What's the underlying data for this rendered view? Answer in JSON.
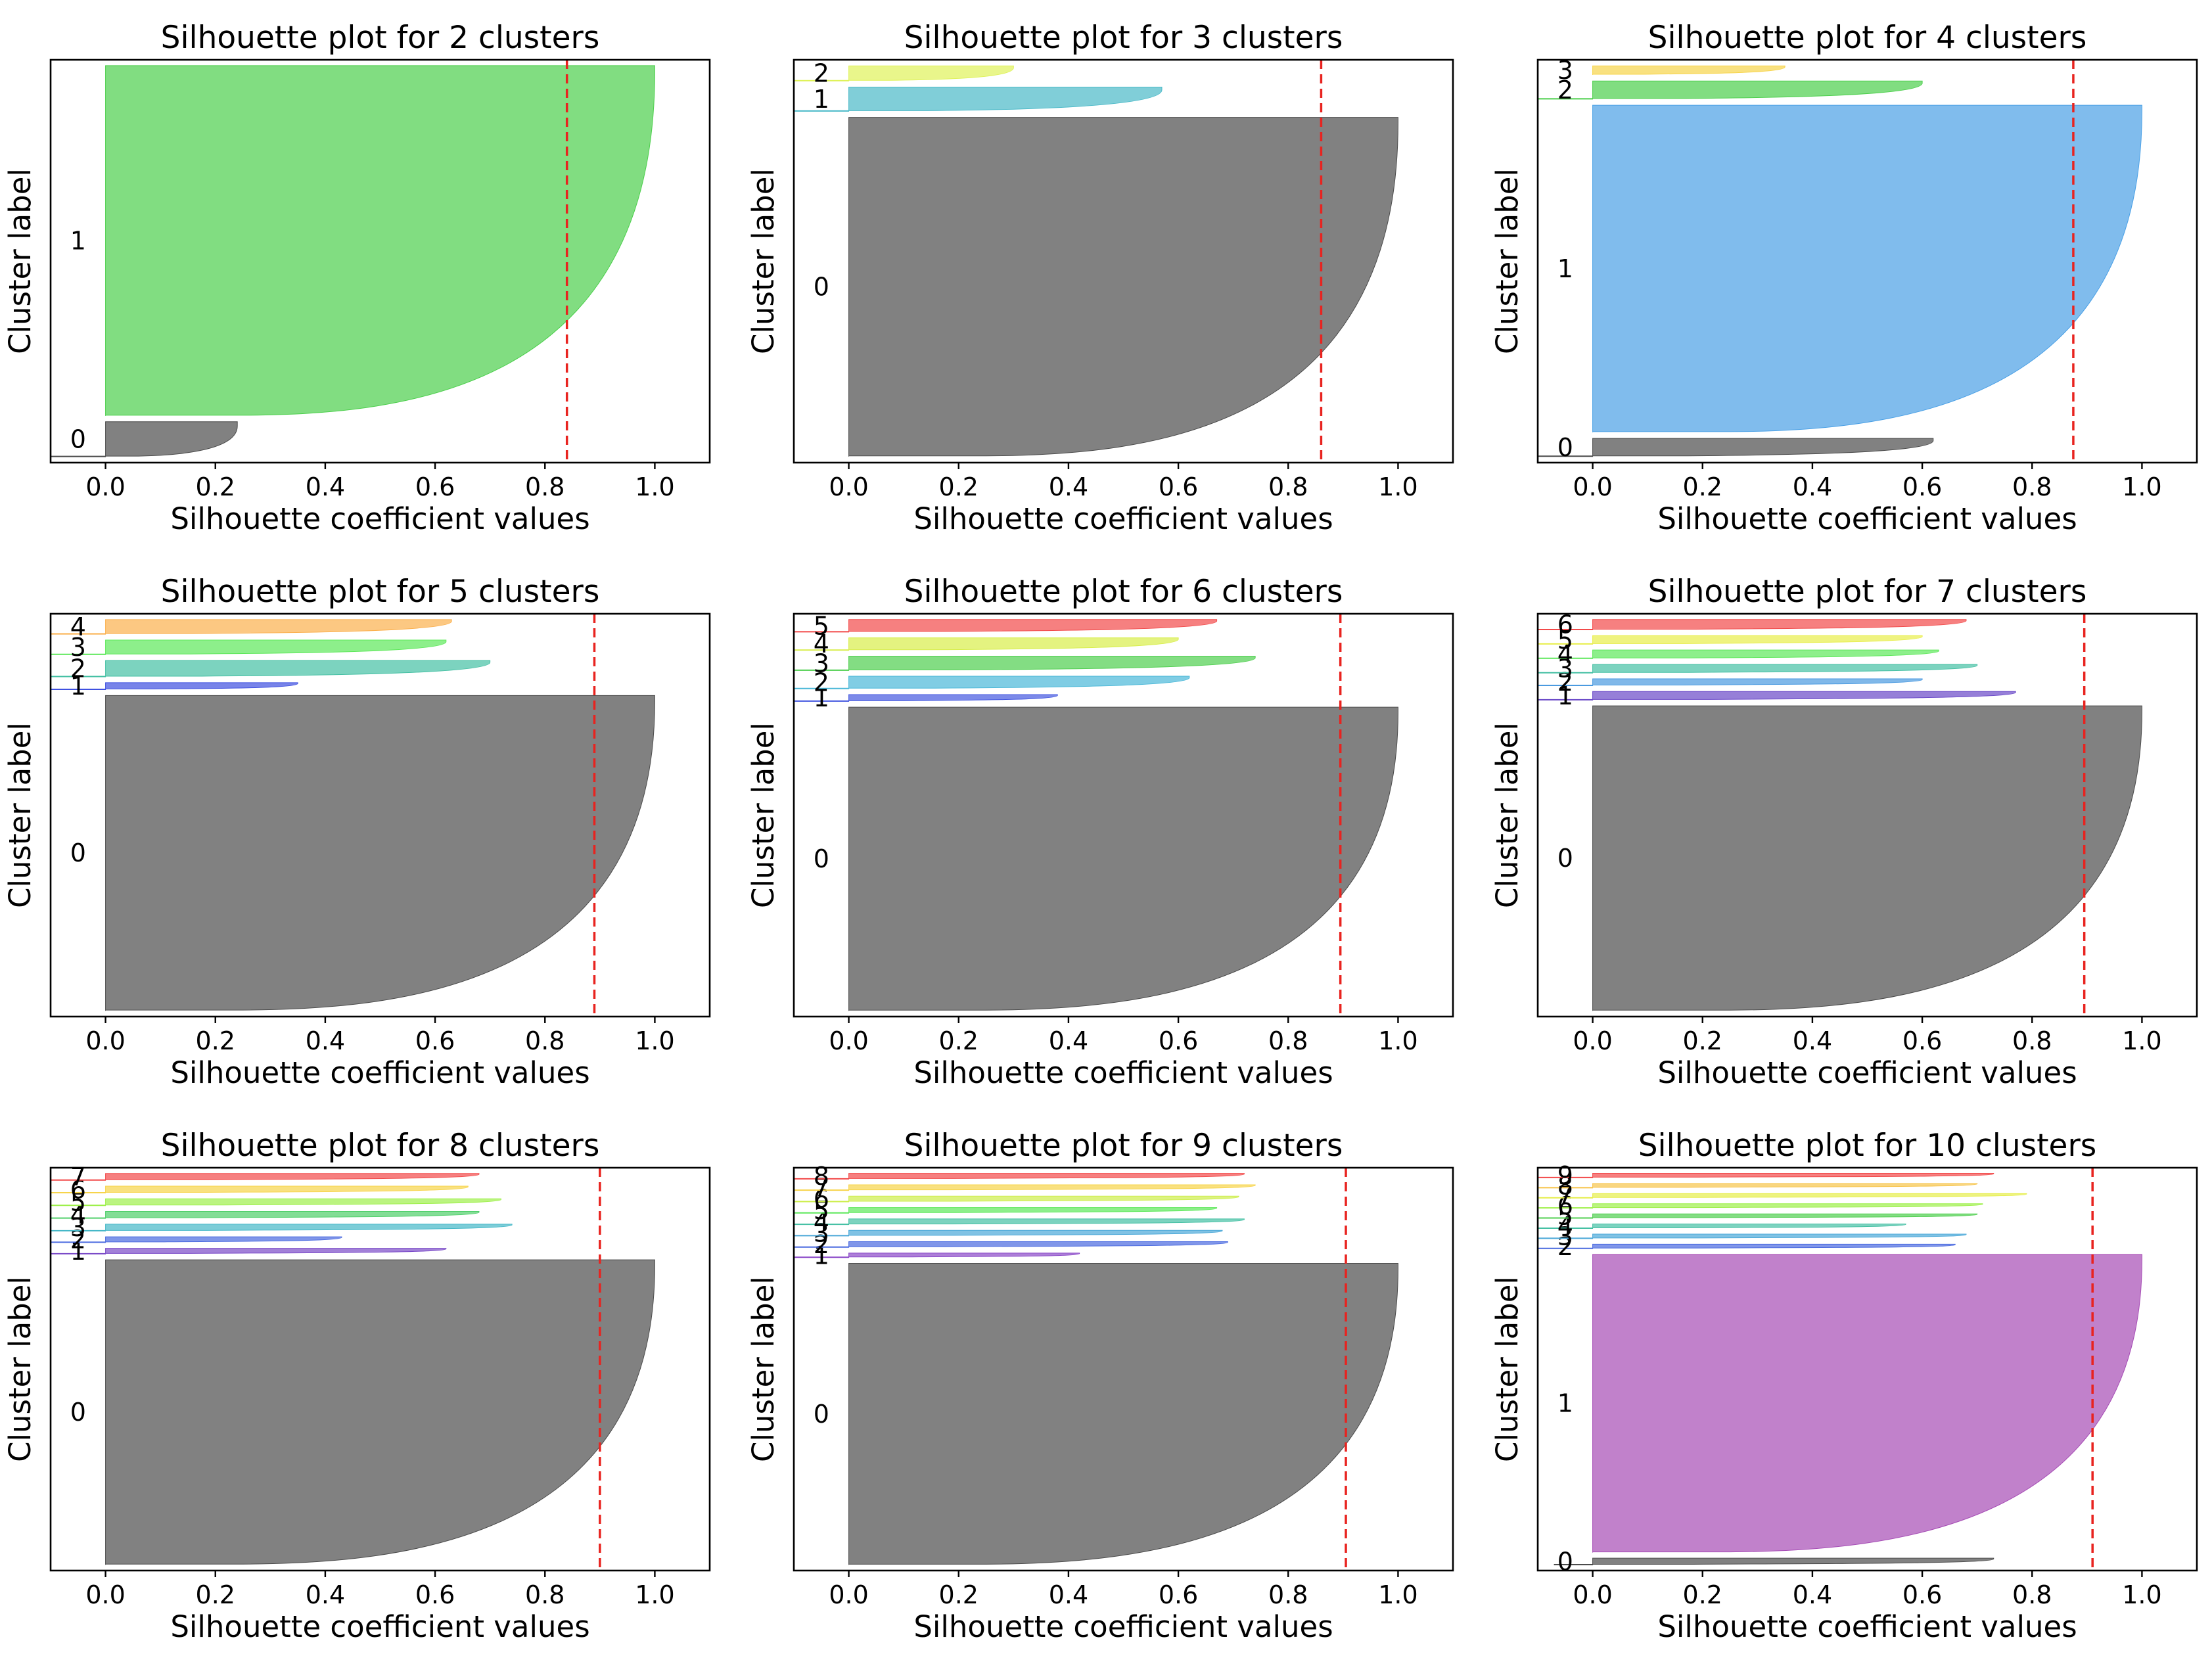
{
  "chart_data": [
    {
      "type": "silhouette",
      "title": "Silhouette plot for 2 clusters",
      "xlabel": "Silhouette coefficient values",
      "ylabel": "Cluster label",
      "xlim": [
        -0.1,
        1.1
      ],
      "xticks": [
        "0.0",
        "0.2",
        "0.4",
        "0.6",
        "0.8",
        "1.0"
      ],
      "average_score": 0.84,
      "clusters": [
        {
          "label": "0",
          "size": 60,
          "max": 0.24,
          "min": -0.1,
          "color": "#4b4b4b"
        },
        {
          "label": "1",
          "size": 600,
          "max": 1.0,
          "min": 0.0,
          "color": "#4bcf4b"
        }
      ]
    },
    {
      "type": "silhouette",
      "title": "Silhouette plot for 3 clusters",
      "xlabel": "Silhouette coefficient values",
      "ylabel": "Cluster label",
      "xlim": [
        -0.1,
        1.1
      ],
      "xticks": [
        "0.0",
        "0.2",
        "0.4",
        "0.6",
        "0.8",
        "1.0"
      ],
      "average_score": 0.86,
      "clusters": [
        {
          "label": "0",
          "size": 560,
          "max": 1.0,
          "min": 0.0,
          "color": "#4b4b4b"
        },
        {
          "label": "1",
          "size": 40,
          "max": 0.57,
          "min": -0.1,
          "color": "#4ab9c8"
        },
        {
          "label": "2",
          "size": 25,
          "max": 0.3,
          "min": -0.1,
          "color": "#dff25a"
        }
      ]
    },
    {
      "type": "silhouette",
      "title": "Silhouette plot for 4 clusters",
      "xlabel": "Silhouette coefficient values",
      "ylabel": "Cluster label",
      "xlim": [
        -0.1,
        1.1
      ],
      "xticks": [
        "0.0",
        "0.2",
        "0.4",
        "0.6",
        "0.8",
        "1.0"
      ],
      "average_score": 0.875,
      "clusters": [
        {
          "label": "0",
          "size": 30,
          "max": 0.62,
          "min": -0.1,
          "color": "#4b4b4b"
        },
        {
          "label": "1",
          "size": 540,
          "max": 1.0,
          "min": 0.0,
          "color": "#4aa0e6"
        },
        {
          "label": "2",
          "size": 30,
          "max": 0.6,
          "min": -0.1,
          "color": "#4bcf4b"
        },
        {
          "label": "3",
          "size": 15,
          "max": 0.35,
          "min": 0.0,
          "color": "#f7d44a"
        }
      ]
    },
    {
      "type": "silhouette",
      "title": "Silhouette plot for 5 clusters",
      "xlabel": "Silhouette coefficient values",
      "ylabel": "Cluster label",
      "xlim": [
        -0.1,
        1.1
      ],
      "xticks": [
        "0.0",
        "0.2",
        "0.4",
        "0.6",
        "0.8",
        "1.0"
      ],
      "average_score": 0.89,
      "clusters": [
        {
          "label": "0",
          "size": 540,
          "max": 1.0,
          "min": 0.0,
          "color": "#4b4b4b"
        },
        {
          "label": "1",
          "size": 12,
          "max": 0.35,
          "min": -0.1,
          "color": "#3f50e0"
        },
        {
          "label": "2",
          "size": 28,
          "max": 0.7,
          "min": -0.1,
          "color": "#45c0a4"
        },
        {
          "label": "3",
          "size": 25,
          "max": 0.62,
          "min": -0.1,
          "color": "#5de85a"
        },
        {
          "label": "4",
          "size": 25,
          "max": 0.63,
          "min": -0.1,
          "color": "#fbb04d"
        }
      ]
    },
    {
      "type": "silhouette",
      "title": "Silhouette plot for 6 clusters",
      "xlabel": "Silhouette coefficient values",
      "ylabel": "Cluster label",
      "xlim": [
        -0.1,
        1.1
      ],
      "xticks": [
        "0.0",
        "0.2",
        "0.4",
        "0.6",
        "0.8",
        "1.0"
      ],
      "average_score": 0.895,
      "clusters": [
        {
          "label": "0",
          "size": 530,
          "max": 1.0,
          "min": 0.0,
          "color": "#4b4b4b"
        },
        {
          "label": "1",
          "size": 12,
          "max": 0.38,
          "min": -0.1,
          "color": "#4458e0"
        },
        {
          "label": "2",
          "size": 22,
          "max": 0.62,
          "min": -0.1,
          "color": "#4ab8d8"
        },
        {
          "label": "3",
          "size": 25,
          "max": 0.74,
          "min": -0.1,
          "color": "#4fcf4f"
        },
        {
          "label": "4",
          "size": 22,
          "max": 0.6,
          "min": -0.1,
          "color": "#d8ee4a"
        },
        {
          "label": "5",
          "size": 22,
          "max": 0.67,
          "min": -0.1,
          "color": "#f24a4a"
        }
      ]
    },
    {
      "type": "silhouette",
      "title": "Silhouette plot for 7 clusters",
      "xlabel": "Silhouette coefficient values",
      "ylabel": "Cluster label",
      "xlim": [
        -0.1,
        1.1
      ],
      "xticks": [
        "0.0",
        "0.2",
        "0.4",
        "0.6",
        "0.8",
        "1.0"
      ],
      "average_score": 0.895,
      "clusters": [
        {
          "label": "0",
          "size": 530,
          "max": 1.0,
          "min": 0.0,
          "color": "#4b4b4b"
        },
        {
          "label": "1",
          "size": 15,
          "max": 0.77,
          "min": -0.1,
          "color": "#6a48c8"
        },
        {
          "label": "2",
          "size": 12,
          "max": 0.6,
          "min": -0.1,
          "color": "#4a9ae0"
        },
        {
          "label": "3",
          "size": 15,
          "max": 0.7,
          "min": -0.1,
          "color": "#45c0a4"
        },
        {
          "label": "4",
          "size": 15,
          "max": 0.63,
          "min": -0.1,
          "color": "#5de85a"
        },
        {
          "label": "5",
          "size": 15,
          "max": 0.6,
          "min": -0.1,
          "color": "#e8ee4a"
        },
        {
          "label": "6",
          "size": 18,
          "max": 0.68,
          "min": -0.1,
          "color": "#f24a4a"
        }
      ]
    },
    {
      "type": "silhouette",
      "title": "Silhouette plot for 8 clusters",
      "xlabel": "Silhouette coefficient values",
      "ylabel": "Cluster label",
      "xlim": [
        -0.1,
        1.1
      ],
      "xticks": [
        "0.0",
        "0.2",
        "0.4",
        "0.6",
        "0.8",
        "1.0"
      ],
      "average_score": 0.9,
      "clusters": [
        {
          "label": "0",
          "size": 530,
          "max": 1.0,
          "min": 0.0,
          "color": "#4b4b4b"
        },
        {
          "label": "1",
          "size": 10,
          "max": 0.62,
          "min": -0.1,
          "color": "#7a4ac8"
        },
        {
          "label": "2",
          "size": 10,
          "max": 0.43,
          "min": -0.1,
          "color": "#4a6ae0"
        },
        {
          "label": "3",
          "size": 12,
          "max": 0.74,
          "min": -0.1,
          "color": "#45b8c8"
        },
        {
          "label": "4",
          "size": 12,
          "max": 0.68,
          "min": -0.1,
          "color": "#4fcf6a"
        },
        {
          "label": "5",
          "size": 12,
          "max": 0.72,
          "min": -0.1,
          "color": "#9ef04a"
        },
        {
          "label": "6",
          "size": 12,
          "max": 0.66,
          "min": -0.1,
          "color": "#f7d44a"
        },
        {
          "label": "7",
          "size": 12,
          "max": 0.68,
          "min": -0.1,
          "color": "#f24a4a"
        }
      ]
    },
    {
      "type": "silhouette",
      "title": "Silhouette plot for 9 clusters",
      "xlabel": "Silhouette coefficient values",
      "ylabel": "Cluster label",
      "xlim": [
        -0.1,
        1.1
      ],
      "xticks": [
        "0.0",
        "0.2",
        "0.4",
        "0.6",
        "0.8",
        "1.0"
      ],
      "average_score": 0.905,
      "clusters": [
        {
          "label": "0",
          "size": 530,
          "max": 1.0,
          "min": 0.0,
          "color": "#4b4b4b"
        },
        {
          "label": "1",
          "size": 8,
          "max": 0.42,
          "min": -0.1,
          "color": "#8a48c8"
        },
        {
          "label": "2",
          "size": 10,
          "max": 0.69,
          "min": -0.1,
          "color": "#4a6ae0"
        },
        {
          "label": "3",
          "size": 10,
          "max": 0.68,
          "min": -0.1,
          "color": "#4aa8d8"
        },
        {
          "label": "4",
          "size": 10,
          "max": 0.72,
          "min": -0.1,
          "color": "#45c0a4"
        },
        {
          "label": "5",
          "size": 10,
          "max": 0.67,
          "min": -0.1,
          "color": "#5de85a"
        },
        {
          "label": "6",
          "size": 10,
          "max": 0.71,
          "min": -0.1,
          "color": "#cdee4a"
        },
        {
          "label": "7",
          "size": 10,
          "max": 0.74,
          "min": -0.1,
          "color": "#f7d44a"
        },
        {
          "label": "8",
          "size": 10,
          "max": 0.72,
          "min": -0.1,
          "color": "#f24a4a"
        }
      ]
    },
    {
      "type": "silhouette",
      "title": "Silhouette plot for 10 clusters",
      "xlabel": "Silhouette coefficient values",
      "ylabel": "Cluster label",
      "xlim": [
        -0.1,
        1.1
      ],
      "xticks": [
        "0.0",
        "0.2",
        "0.4",
        "0.6",
        "0.8",
        "1.0"
      ],
      "average_score": 0.91,
      "clusters": [
        {
          "label": "0",
          "size": 12,
          "max": 0.73,
          "min": -0.07,
          "color": "#4b4b4b"
        },
        {
          "label": "1",
          "size": 530,
          "max": 1.0,
          "min": 0.0,
          "color": "#a64cb5"
        },
        {
          "label": "2",
          "size": 8,
          "max": 0.66,
          "min": -0.1,
          "color": "#4a6ae0"
        },
        {
          "label": "3",
          "size": 8,
          "max": 0.68,
          "min": -0.1,
          "color": "#4aa8d8"
        },
        {
          "label": "4",
          "size": 8,
          "max": 0.57,
          "min": -0.1,
          "color": "#45c0a4"
        },
        {
          "label": "5",
          "size": 8,
          "max": 0.7,
          "min": -0.1,
          "color": "#4fcf4f"
        },
        {
          "label": "6",
          "size": 8,
          "max": 0.71,
          "min": -0.1,
          "color": "#9ef04a"
        },
        {
          "label": "7",
          "size": 8,
          "max": 0.79,
          "min": -0.1,
          "color": "#e6ee4a"
        },
        {
          "label": "8",
          "size": 8,
          "max": 0.7,
          "min": -0.1,
          "color": "#f7c44a"
        },
        {
          "label": "9",
          "size": 8,
          "max": 0.73,
          "min": -0.1,
          "color": "#f24a4a"
        }
      ]
    }
  ]
}
